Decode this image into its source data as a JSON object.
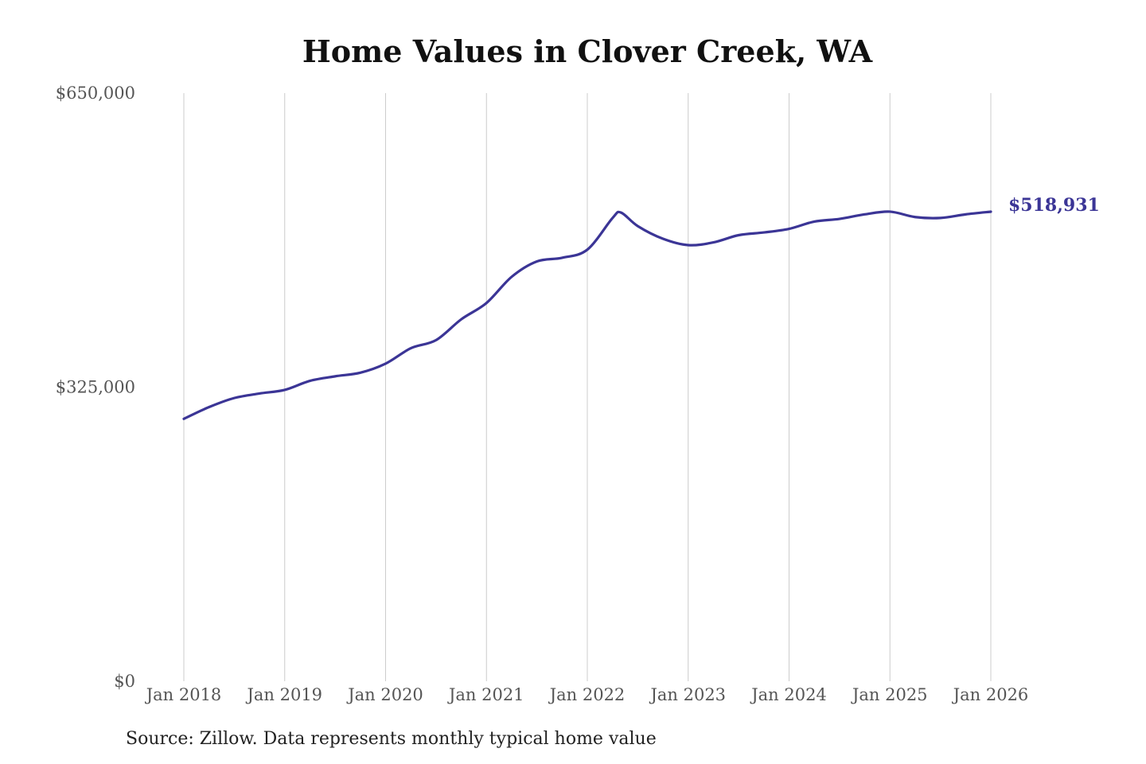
{
  "chart_data": {
    "type": "line",
    "title": "Home Values in Clover Creek, WA",
    "xlabel": "",
    "ylabel": "",
    "ylim": [
      0,
      650000
    ],
    "yticks": [
      {
        "value": 0,
        "label": "$0"
      },
      {
        "value": 325000,
        "label": "$325,000"
      },
      {
        "value": 650000,
        "label": "$650,000"
      }
    ],
    "xticks": [
      {
        "value": "2018-01",
        "label": "Jan 2018"
      },
      {
        "value": "2019-01",
        "label": "Jan 2019"
      },
      {
        "value": "2020-01",
        "label": "Jan 2020"
      },
      {
        "value": "2021-01",
        "label": "Jan 2021"
      },
      {
        "value": "2022-01",
        "label": "Jan 2022"
      },
      {
        "value": "2023-01",
        "label": "Jan 2023"
      },
      {
        "value": "2024-01",
        "label": "Jan 2024"
      },
      {
        "value": "2025-01",
        "label": "Jan 2025"
      },
      {
        "value": "2026-01",
        "label": "Jan 2026"
      }
    ],
    "grid": "vertical",
    "legend": "none",
    "line_color": "#3b3596",
    "series": [
      {
        "x": [
          "2018-01",
          "2018-04",
          "2018-07",
          "2018-10",
          "2019-01",
          "2019-04",
          "2019-07",
          "2019-10",
          "2020-01",
          "2020-04",
          "2020-07",
          "2020-10",
          "2021-01",
          "2021-04",
          "2021-07",
          "2021-10",
          "2022-01",
          "2022-04",
          "2022-05",
          "2022-07",
          "2022-10",
          "2023-01",
          "2023-04",
          "2023-07",
          "2023-10",
          "2024-01",
          "2024-04",
          "2024-07",
          "2024-10",
          "2025-01",
          "2025-04",
          "2025-07",
          "2025-10",
          "2026-01"
        ],
        "values": [
          290000,
          303000,
          313000,
          318000,
          322000,
          332000,
          337000,
          341000,
          351000,
          368000,
          377000,
          400000,
          418000,
          447000,
          464000,
          468000,
          477000,
          512000,
          518000,
          503000,
          489000,
          482000,
          485000,
          493000,
          496000,
          500000,
          508000,
          511000,
          516000,
          519000,
          513000,
          512000,
          516000,
          518931
        ]
      }
    ],
    "end_label": "$518,931"
  },
  "source_note": "Source: Zillow. Data represents monthly typical home value"
}
